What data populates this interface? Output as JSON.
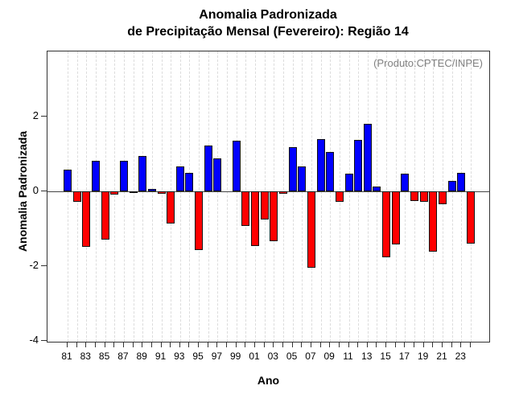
{
  "title": {
    "line1": "Anomalia Padronizada",
    "line2": "de Precipitação Mensal (Fevereiro): Região 14"
  },
  "annotation": "(Produto:CPTEC/INPE)",
  "chart_data": {
    "type": "bar",
    "title": "Anomalia Padronizada de Precipitação Mensal (Fevereiro): Região 14",
    "xlabel": "Ano",
    "ylabel": "Anomalia Padronizada",
    "categories": [
      "81",
      "82",
      "83",
      "84",
      "85",
      "86",
      "87",
      "88",
      "89",
      "90",
      "91",
      "92",
      "93",
      "94",
      "95",
      "96",
      "97",
      "98",
      "99",
      "00",
      "01",
      "02",
      "03",
      "04",
      "05",
      "06",
      "07",
      "08",
      "09",
      "10",
      "11",
      "12",
      "13",
      "14",
      "15",
      "16",
      "17",
      "18",
      "19",
      "20",
      "21",
      "22",
      "23",
      "24"
    ],
    "values": [
      0.58,
      -0.29,
      -1.49,
      0.81,
      -1.3,
      -0.09,
      0.81,
      -0.05,
      0.95,
      0.06,
      -0.06,
      -0.86,
      0.67,
      0.5,
      -1.57,
      1.23,
      0.89,
      0.0,
      1.35,
      -0.93,
      -1.47,
      -0.75,
      -1.34,
      -0.06,
      1.18,
      0.67,
      -2.05,
      1.41,
      1.05,
      -0.27,
      0.48,
      1.39,
      1.82,
      0.14,
      -1.77,
      -1.43,
      0.47,
      -0.26,
      -0.28,
      -1.61,
      -0.35,
      0.27,
      0.5,
      -1.4
    ],
    "x_tick_labels": [
      "81",
      "83",
      "85",
      "87",
      "89",
      "91",
      "93",
      "95",
      "97",
      "99",
      "01",
      "03",
      "05",
      "07",
      "09",
      "11",
      "13",
      "15",
      "17",
      "19",
      "21",
      "23"
    ],
    "y_tick_labels": [
      "2",
      "0",
      "-2",
      "-4"
    ],
    "yticks": [
      2,
      0,
      -2,
      -4
    ],
    "ylim": [
      -4.07,
      3.75
    ],
    "grid": "vertical-dotted",
    "legend_position": "none",
    "positive_color": "#0000FF",
    "negative_color": "#FF0000",
    "bar_border_color": "#111111",
    "axis_color": "#333333",
    "annotation_color": "#808080"
  }
}
